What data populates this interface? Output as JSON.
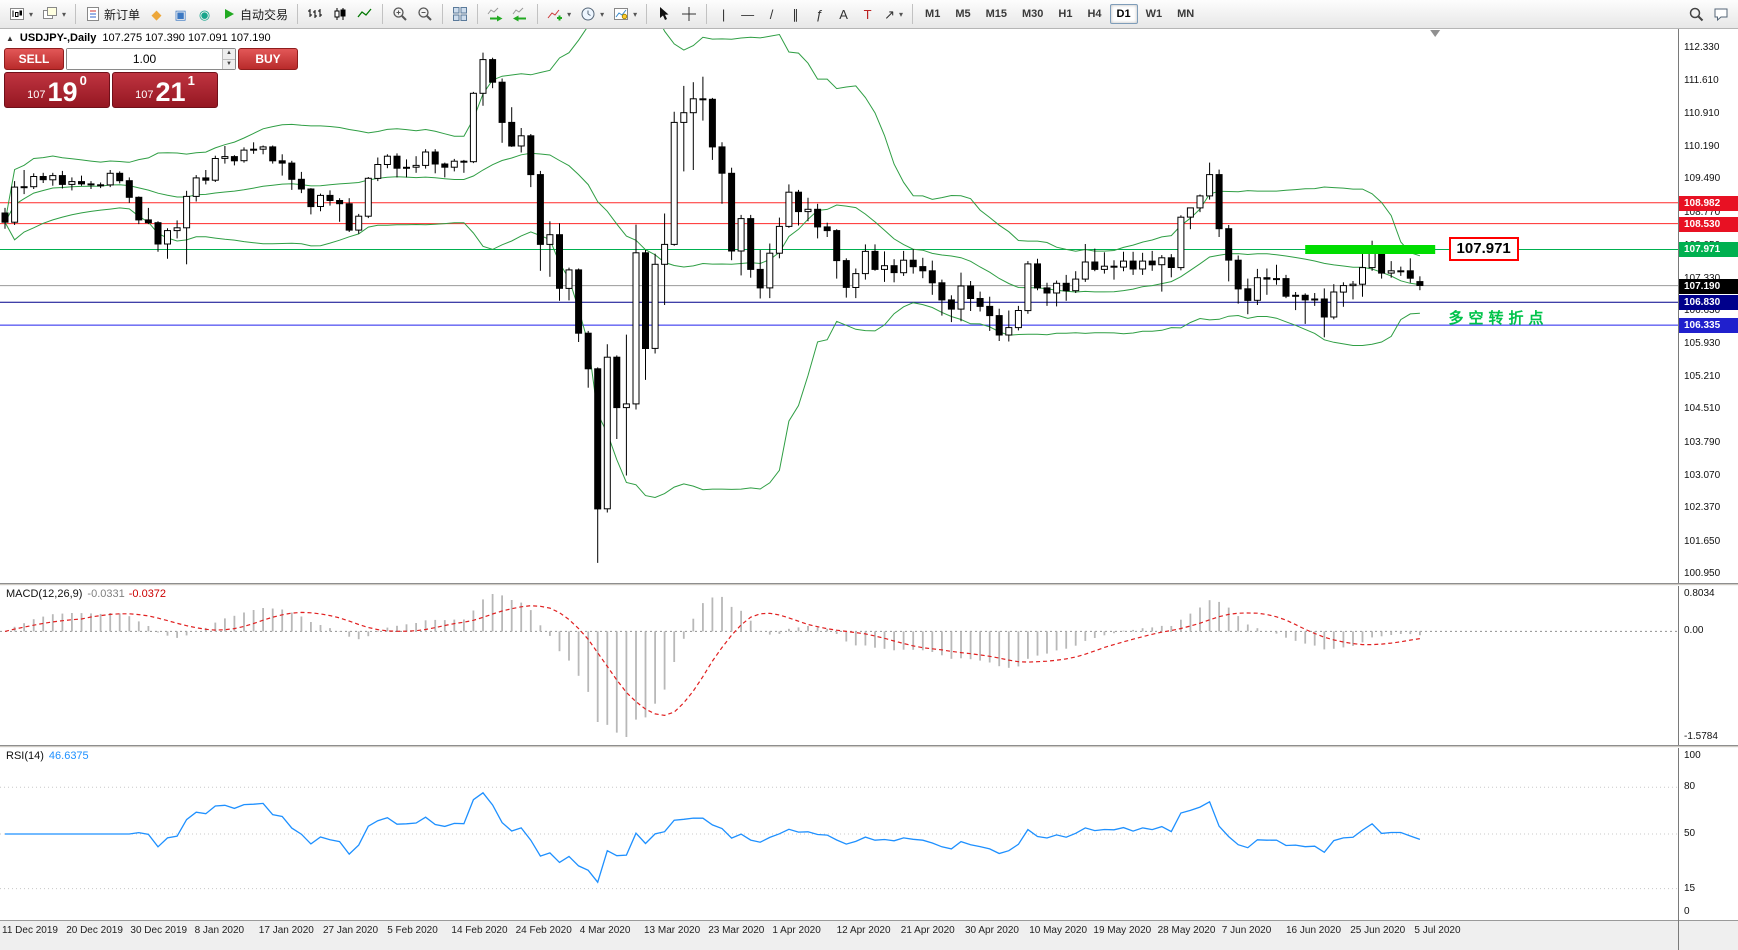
{
  "toolbar": {
    "groups": [
      {
        "items": [
          {
            "name": "new-chart",
            "icon": "new-chart",
            "dd": true
          },
          {
            "name": "profiles",
            "icon": "profiles",
            "dd": true
          }
        ]
      },
      {
        "items": [
          {
            "name": "new-order",
            "icon": "new-order",
            "label": "新订单"
          },
          {
            "name": "metaeditor",
            "icon": "metaeditor"
          },
          {
            "name": "market",
            "icon": "market"
          },
          {
            "name": "signals",
            "icon": "signals"
          },
          {
            "name": "autotrading",
            "icon": "autotrading",
            "label": "自动交易"
          }
        ]
      },
      {
        "items": [
          {
            "name": "bar-chart-mode",
            "icon": "bars"
          },
          {
            "name": "candle-chart-mode",
            "icon": "candles"
          },
          {
            "name": "line-chart-mode",
            "icon": "linechart"
          }
        ]
      },
      {
        "items": [
          {
            "name": "zoom-in",
            "icon": "zoom-in"
          },
          {
            "name": "zoom-out",
            "icon": "zoom-out"
          }
        ]
      },
      {
        "items": [
          {
            "name": "tile-windows",
            "icon": "tile"
          }
        ]
      },
      {
        "items": [
          {
            "name": "auto-scroll",
            "icon": "autoscroll"
          },
          {
            "name": "chart-shift",
            "icon": "chartshift"
          }
        ]
      },
      {
        "items": [
          {
            "name": "indicators",
            "icon": "indicators",
            "dd": true
          },
          {
            "name": "periods",
            "icon": "periods",
            "dd": true
          },
          {
            "name": "templates",
            "icon": "templates",
            "dd": true
          }
        ]
      },
      {
        "items": [
          {
            "name": "cursor",
            "icon": "cursor"
          },
          {
            "name": "crosshair",
            "icon": "crosshair"
          }
        ]
      },
      {
        "items": [
          {
            "name": "vertical-line",
            "icon": "vline"
          },
          {
            "name": "horizontal-line",
            "icon": "hline"
          },
          {
            "name": "trend-line",
            "icon": "trendline"
          },
          {
            "name": "equidistant-channel",
            "icon": "channel"
          },
          {
            "name": "fibonacci",
            "icon": "fibo"
          },
          {
            "name": "text",
            "icon": "text"
          },
          {
            "name": "text-label",
            "icon": "label"
          },
          {
            "name": "arrows",
            "icon": "arrows",
            "dd": true
          }
        ]
      },
      {
        "timeframes": [
          "M1",
          "M5",
          "M15",
          "M30",
          "H1",
          "H4",
          "D1",
          "W1",
          "MN"
        ],
        "active": "D1"
      }
    ],
    "right": [
      {
        "name": "search",
        "icon": "search"
      },
      {
        "name": "chat",
        "icon": "chat"
      }
    ]
  },
  "chart": {
    "expand_icon": "▲",
    "title": "USDJPY-,Daily",
    "ohlc": "107.275 107.390 107.091 107.190"
  },
  "trade_panel": {
    "sell_label": "SELL",
    "buy_label": "BUY",
    "volume": "1.00",
    "sell_price": {
      "small": "107",
      "big": "19",
      "sup": "0"
    },
    "buy_price": {
      "small": "107",
      "big": "21",
      "sup": "1"
    }
  },
  "macd": {
    "name": "MACD(12,26,9)",
    "value_main": "-0.0331",
    "value_signal": "-0.0372",
    "scale_top": "0.8034",
    "scale_zero": "0.00",
    "scale_bottom": "-1.5784",
    "fast": 12,
    "slow": 26,
    "signal": 9,
    "bar_color": "#b8b8b8",
    "line_color": "#e02020"
  },
  "rsi": {
    "name": "RSI(14)",
    "value": "46.6375",
    "period": 14,
    "levels": [
      "100",
      "80",
      "50",
      "15",
      "0"
    ],
    "line_color": "#1e90ff"
  },
  "chart_data": {
    "type": "candlestick",
    "symbol": "USDJPY-",
    "period": "Daily",
    "title": "USDJPY- Daily with Bollinger Bands, MACD(12,26,9), RSI(14)",
    "y_ticks": [
      "112.330",
      "111.610",
      "110.910",
      "110.190",
      "109.490",
      "108.770",
      "108.050",
      "107.330",
      "106.630",
      "105.930",
      "105.210",
      "104.510",
      "103.790",
      "103.070",
      "102.370",
      "101.650",
      "100.950"
    ],
    "x_labels": [
      "11 Dec 2019",
      "20 Dec 2019",
      "30 Dec 2019",
      "8 Jan 2020",
      "17 Jan 2020",
      "27 Jan 2020",
      "5 Feb 2020",
      "14 Feb 2020",
      "24 Feb 2020",
      "4 Mar 2020",
      "13 Mar 2020",
      "23 Mar 2020",
      "1 Apr 2020",
      "12 Apr 2020",
      "21 Apr 2020",
      "30 Apr 2020",
      "10 May 2020",
      "19 May 2020",
      "28 May 2020",
      "7 Jun 2020",
      "16 Jun 2020",
      "25 Jun 2020",
      "5 Jul 2020"
    ],
    "y_axis": {
      "max": 112.33,
      "min": 100.95
    },
    "bollinger": {
      "period": 20,
      "deviation": 2,
      "color": "#2f9e44"
    },
    "candles": [
      [
        108.76,
        108.87,
        108.42,
        108.56
      ],
      [
        108.56,
        109.45,
        108.5,
        109.32
      ],
      [
        109.32,
        109.69,
        109.17,
        109.33
      ],
      [
        109.33,
        109.62,
        109.28,
        109.55
      ],
      [
        109.55,
        109.63,
        109.41,
        109.48
      ],
      [
        109.48,
        109.63,
        109.35,
        109.57
      ],
      [
        109.57,
        109.67,
        109.29,
        109.38
      ],
      [
        109.38,
        109.53,
        109.25,
        109.44
      ],
      [
        109.44,
        109.57,
        109.35,
        109.39
      ],
      [
        109.39,
        109.45,
        109.28,
        109.37
      ],
      [
        109.37,
        109.42,
        109.3,
        109.37
      ],
      [
        109.37,
        109.69,
        109.32,
        109.62
      ],
      [
        109.62,
        109.66,
        109.4,
        109.46
      ],
      [
        109.46,
        109.53,
        108.98,
        109.1
      ],
      [
        109.1,
        109.12,
        108.52,
        108.61
      ],
      [
        108.61,
        108.87,
        108.52,
        108.55
      ],
      [
        108.55,
        108.58,
        107.92,
        108.09
      ],
      [
        108.09,
        108.43,
        107.77,
        108.38
      ],
      [
        108.38,
        108.6,
        108.21,
        108.44
      ],
      [
        108.44,
        109.24,
        107.65,
        109.12
      ],
      [
        109.12,
        109.58,
        109.01,
        109.52
      ],
      [
        109.52,
        109.69,
        109.38,
        109.47
      ],
      [
        109.47,
        110.0,
        109.43,
        109.94
      ],
      [
        109.94,
        110.21,
        109.83,
        109.98
      ],
      [
        109.98,
        110.01,
        109.79,
        109.89
      ],
      [
        109.89,
        110.18,
        109.85,
        110.12
      ],
      [
        110.12,
        110.29,
        110.04,
        110.14
      ],
      [
        110.14,
        110.22,
        110.03,
        110.19
      ],
      [
        110.19,
        110.22,
        109.83,
        109.89
      ],
      [
        109.89,
        110.03,
        109.57,
        109.84
      ],
      [
        109.84,
        109.89,
        109.26,
        109.49
      ],
      [
        109.49,
        109.65,
        109.19,
        109.28
      ],
      [
        109.28,
        109.3,
        108.73,
        108.9
      ],
      [
        108.9,
        109.18,
        108.8,
        109.14
      ],
      [
        109.14,
        109.25,
        108.92,
        109.03
      ],
      [
        109.03,
        109.08,
        108.57,
        108.96
      ],
      [
        108.96,
        109.08,
        108.35,
        108.39
      ],
      [
        108.39,
        108.74,
        108.31,
        108.69
      ],
      [
        108.69,
        109.54,
        108.65,
        109.51
      ],
      [
        109.51,
        109.96,
        109.45,
        109.81
      ],
      [
        109.81,
        110.03,
        109.73,
        109.99
      ],
      [
        109.99,
        110.05,
        109.53,
        109.73
      ],
      [
        109.73,
        109.92,
        109.53,
        109.75
      ],
      [
        109.75,
        109.99,
        109.63,
        109.79
      ],
      [
        109.79,
        110.14,
        109.72,
        110.08
      ],
      [
        110.08,
        110.14,
        109.62,
        109.82
      ],
      [
        109.82,
        109.85,
        109.53,
        109.75
      ],
      [
        109.75,
        109.93,
        109.66,
        109.88
      ],
      [
        109.88,
        109.91,
        109.63,
        109.87
      ],
      [
        109.87,
        111.38,
        109.84,
        111.35
      ],
      [
        111.35,
        112.23,
        111.08,
        112.08
      ],
      [
        112.08,
        112.12,
        111.46,
        111.59
      ],
      [
        111.59,
        111.67,
        110.28,
        110.72
      ],
      [
        110.72,
        111.05,
        110.19,
        110.21
      ],
      [
        110.21,
        110.6,
        110.07,
        110.43
      ],
      [
        110.43,
        110.47,
        109.32,
        109.59
      ],
      [
        109.59,
        109.67,
        107.51,
        108.08
      ],
      [
        108.08,
        108.58,
        107.38,
        108.29
      ],
      [
        108.29,
        108.54,
        106.86,
        107.13
      ],
      [
        107.13,
        107.58,
        106.87,
        107.53
      ],
      [
        107.53,
        107.56,
        105.97,
        106.16
      ],
      [
        106.16,
        106.21,
        104.98,
        105.39
      ],
      [
        105.39,
        105.42,
        101.19,
        102.36
      ],
      [
        102.36,
        105.92,
        102.28,
        105.64
      ],
      [
        105.64,
        105.68,
        103.87,
        104.55
      ],
      [
        104.55,
        106.13,
        103.08,
        104.63
      ],
      [
        104.63,
        108.51,
        104.51,
        107.9
      ],
      [
        107.9,
        107.96,
        105.15,
        105.83
      ],
      [
        105.83,
        107.88,
        105.72,
        107.65
      ],
      [
        107.65,
        108.75,
        106.77,
        108.08
      ],
      [
        108.08,
        110.95,
        108.05,
        110.72
      ],
      [
        110.72,
        111.51,
        109.66,
        110.93
      ],
      [
        110.93,
        111.59,
        109.69,
        111.23
      ],
      [
        111.23,
        111.71,
        110.76,
        111.22
      ],
      [
        111.22,
        111.25,
        109.91,
        110.19
      ],
      [
        110.19,
        110.29,
        108.96,
        109.62
      ],
      [
        109.62,
        109.74,
        107.74,
        107.94
      ],
      [
        107.94,
        108.72,
        107.41,
        108.64
      ],
      [
        108.64,
        108.72,
        107.36,
        107.54
      ],
      [
        107.54,
        107.96,
        106.91,
        107.14
      ],
      [
        107.14,
        108.1,
        106.92,
        107.89
      ],
      [
        107.89,
        108.66,
        107.78,
        108.47
      ],
      [
        108.47,
        109.38,
        108.44,
        109.21
      ],
      [
        109.21,
        109.26,
        108.49,
        108.79
      ],
      [
        108.79,
        109.09,
        108.58,
        108.84
      ],
      [
        108.84,
        108.96,
        108.21,
        108.46
      ],
      [
        108.46,
        108.55,
        108.24,
        108.38
      ],
      [
        108.38,
        108.41,
        107.34,
        107.73
      ],
      [
        107.73,
        107.78,
        106.93,
        107.15
      ],
      [
        107.15,
        107.56,
        106.92,
        107.45
      ],
      [
        107.45,
        108.08,
        107.32,
        107.93
      ],
      [
        107.93,
        108.08,
        107.51,
        107.54
      ],
      [
        107.54,
        107.93,
        107.27,
        107.62
      ],
      [
        107.62,
        107.76,
        107.26,
        107.47
      ],
      [
        107.47,
        107.94,
        107.4,
        107.74
      ],
      [
        107.74,
        107.98,
        107.45,
        107.6
      ],
      [
        107.6,
        107.79,
        107.35,
        107.51
      ],
      [
        107.51,
        107.73,
        106.99,
        107.25
      ],
      [
        107.25,
        107.32,
        106.54,
        106.88
      ],
      [
        106.88,
        106.98,
        106.4,
        106.68
      ],
      [
        106.68,
        107.47,
        106.42,
        107.18
      ],
      [
        107.18,
        107.29,
        106.64,
        106.91
      ],
      [
        106.91,
        107.06,
        106.63,
        106.74
      ],
      [
        106.74,
        106.95,
        106.21,
        106.54
      ],
      [
        106.54,
        106.69,
        105.99,
        106.12
      ],
      [
        106.12,
        106.65,
        105.98,
        106.28
      ],
      [
        106.28,
        106.75,
        106.22,
        106.65
      ],
      [
        106.65,
        107.72,
        106.58,
        107.66
      ],
      [
        107.66,
        107.77,
        107.09,
        107.14
      ],
      [
        107.14,
        107.25,
        106.75,
        107.03
      ],
      [
        107.03,
        107.3,
        106.74,
        107.24
      ],
      [
        107.24,
        107.42,
        106.86,
        107.08
      ],
      [
        107.08,
        107.5,
        107.03,
        107.33
      ],
      [
        107.33,
        108.09,
        107.27,
        107.7
      ],
      [
        107.7,
        107.99,
        107.5,
        107.54
      ],
      [
        107.54,
        107.91,
        107.45,
        107.61
      ],
      [
        107.61,
        107.74,
        107.32,
        107.59
      ],
      [
        107.59,
        107.92,
        107.5,
        107.72
      ],
      [
        107.72,
        107.92,
        107.42,
        107.55
      ],
      [
        107.55,
        107.9,
        107.42,
        107.72
      ],
      [
        107.72,
        107.94,
        107.51,
        107.64
      ],
      [
        107.64,
        107.85,
        107.06,
        107.79
      ],
      [
        107.79,
        107.87,
        107.37,
        107.58
      ],
      [
        107.58,
        108.71,
        107.52,
        108.67
      ],
      [
        108.67,
        108.88,
        108.41,
        108.87
      ],
      [
        108.87,
        109.16,
        108.78,
        109.13
      ],
      [
        109.13,
        109.85,
        109.05,
        109.59
      ],
      [
        109.59,
        109.7,
        108.24,
        108.42
      ],
      [
        108.42,
        108.5,
        107.28,
        107.74
      ],
      [
        107.74,
        107.84,
        106.8,
        107.12
      ],
      [
        107.12,
        107.34,
        106.57,
        106.87
      ],
      [
        106.87,
        107.55,
        106.77,
        107.36
      ],
      [
        107.36,
        107.56,
        106.99,
        107.33
      ],
      [
        107.33,
        107.64,
        107.21,
        107.34
      ],
      [
        107.34,
        107.42,
        106.92,
        106.96
      ],
      [
        106.96,
        107.05,
        106.66,
        106.98
      ],
      [
        106.98,
        107.02,
        106.36,
        106.88
      ],
      [
        106.88,
        107.03,
        106.75,
        106.9
      ],
      [
        106.9,
        107.13,
        106.07,
        106.51
      ],
      [
        106.51,
        107.22,
        106.46,
        107.05
      ],
      [
        107.05,
        107.26,
        106.73,
        107.19
      ],
      [
        107.19,
        107.29,
        106.89,
        107.22
      ],
      [
        107.22,
        107.89,
        106.95,
        107.58
      ],
      [
        107.58,
        108.16,
        107.51,
        107.93
      ],
      [
        107.93,
        108.05,
        107.34,
        107.46
      ],
      [
        107.46,
        107.72,
        107.36,
        107.51
      ],
      [
        107.51,
        107.6,
        107.4,
        107.51
      ],
      [
        107.51,
        107.78,
        107.25,
        107.35
      ],
      [
        107.275,
        107.39,
        107.091,
        107.19
      ]
    ],
    "h_lines": [
      {
        "price": 108.982,
        "color": "#ff2a2a",
        "label": "108.982",
        "label_bg": "#e81123"
      },
      {
        "price": 108.53,
        "color": "#ff2a2a",
        "label": "108.530",
        "label_bg": "#e81123"
      },
      {
        "price": 107.971,
        "color": "#00b050",
        "label": "107.971",
        "label_bg": "#00b050"
      },
      {
        "price": 106.83,
        "color": "#00008b",
        "label": "106.830",
        "label_bg": "#00008b"
      },
      {
        "price": 106.335,
        "color": "#2020ee",
        "label": "106.335",
        "label_bg": "#2020cd"
      }
    ],
    "current_price": {
      "value": 107.19,
      "label": "107.190",
      "line_color": "#9a9a9a",
      "label_bg": "#000000"
    },
    "highlight": {
      "price": 107.971,
      "from_candle": 136,
      "to_candle": 149.6,
      "color": "#00dd00",
      "thickness": 9
    },
    "annotations": {
      "price_tag": {
        "text": "107.971",
        "price": 107.971,
        "candle": 151,
        "border": "#ff0000"
      },
      "note": {
        "text": "多空转折点",
        "price": 106.5,
        "candle": 151,
        "color": "#00c34a"
      }
    }
  }
}
